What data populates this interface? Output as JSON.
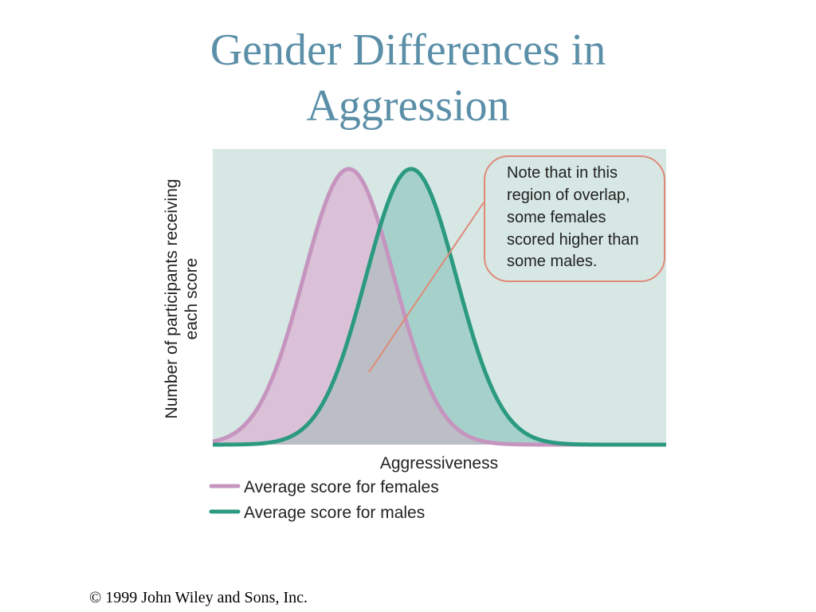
{
  "title_lines": [
    "Gender Differences in",
    "Aggression"
  ],
  "copyright": "©  1999 John Wiley and Sons, Inc.",
  "colors": {
    "title": "#5b8fa8",
    "plot_background": "#d6e7e4",
    "females_line": "#c594bf",
    "females_fill": "#dbc1d7",
    "males_line": "#2b9a80",
    "males_fill": "#a6d1cb",
    "overlap_fill": "#bcbec6",
    "note_border": "#e08a78",
    "note_fill": "#d6e7e4"
  },
  "chart_data": {
    "type": "area",
    "title": "",
    "xlabel": "Aggressiveness",
    "ylabel_lines": [
      "Number of participants receiving",
      "each score"
    ],
    "x": [
      0,
      1,
      2,
      3,
      4,
      5,
      6,
      7,
      8,
      9,
      10,
      11,
      12,
      13,
      14,
      15,
      16,
      17,
      18,
      19,
      20,
      21,
      22,
      23,
      24,
      25,
      26,
      27,
      28,
      29,
      30,
      31,
      32,
      33,
      34,
      35,
      36,
      37,
      38,
      39,
      40
    ],
    "xlim": [
      0,
      40
    ],
    "ylim": [
      0,
      1
    ],
    "grid": false,
    "series": [
      {
        "name": "Average score for females",
        "key": "females",
        "mean": 12,
        "sd": 4.0,
        "peak": 1.0
      },
      {
        "name": "Average score for males",
        "key": "males",
        "mean": 17.5,
        "sd": 4.0,
        "peak": 1.0
      }
    ],
    "legend": {
      "placement": "bottom-left",
      "items": [
        {
          "label": "Average score for females",
          "series": "females"
        },
        {
          "label": "Average score for males",
          "series": "males"
        }
      ]
    },
    "annotation": {
      "lines": [
        "Note that in this",
        "region of overlap,",
        "some females",
        "scored higher than",
        "some males."
      ]
    }
  }
}
